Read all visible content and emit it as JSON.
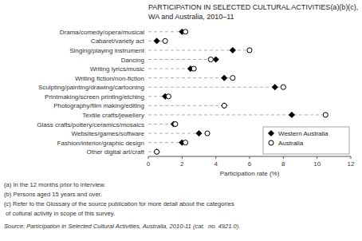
{
  "chart_data": {
    "type": "dot",
    "orientation": "horizontal",
    "title": "PARTICIPATION IN SELECTED CULTURAL ACTIVITIES(a)(b)(c),",
    "subtitle": "WA and Australia, 2010–11",
    "categories": [
      "Drama/comedy/opera/musical",
      "Cabaret/variety act",
      "Singing/playing instrument",
      "Dancing",
      "Writing lyrics/music",
      "Writing fiction/non-fiction",
      "Sculpting/painting/drawing/cartooning",
      "Printmaking/screen printing/etching",
      "Photography/film making/editing",
      "Textile crafts/jewellery",
      "Glass crafts/pottery/ceramics/mosaics",
      "Websites/games/software",
      "Fashion/interior/graphic design",
      "Other digital art/craft"
    ],
    "series": [
      {
        "name": "Western Australia",
        "color": "#000000",
        "marker": "diamond",
        "values": [
          2.0,
          0.5,
          5.0,
          4.0,
          2.5,
          4.5,
          7.5,
          1.0,
          4.5,
          8.5,
          1.5,
          3.0,
          2.0,
          0.5
        ]
      },
      {
        "name": "Australia",
        "color": "#000000",
        "marker": "open-circle",
        "values": [
          2.2,
          1.0,
          6.0,
          3.7,
          2.7,
          5.0,
          8.0,
          1.2,
          4.5,
          10.5,
          1.6,
          3.5,
          2.2,
          0.5
        ]
      }
    ],
    "xlabel": "Participation rate (%)",
    "xlim": [
      0,
      12
    ],
    "xticks": [
      0,
      2,
      4,
      6,
      8,
      10,
      12
    ],
    "grid": false,
    "legend": "lower right",
    "annotations": [
      "(a) In the 12 months prior to interview.",
      "(b) Persons aged 15 years and over.",
      "(c) Refer to the Glossary of the source publication for more detail about the categories",
      " of cultural activity in scope of this survey."
    ],
    "source": "Source: Participation in Selected Cultural Activities, Australia, 2010-11 (cat.  no. 4921.0)."
  }
}
